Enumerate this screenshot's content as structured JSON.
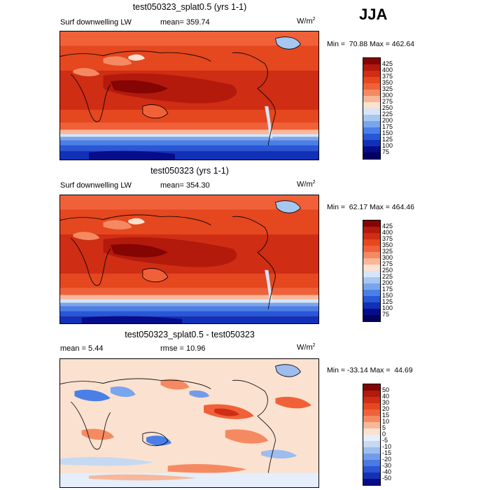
{
  "season": "JJA",
  "units": "W/m",
  "units_sup": "2",
  "panels": [
    {
      "title": "test050323_splat0.5 (yrs 1-1)",
      "field": "Surf downwelling LW",
      "mean": "mean= 359.74",
      "minmax": "Min =  70.88 Max = 462.64",
      "levels": [
        "425",
        "400",
        "375",
        "350",
        "325",
        "300",
        "275",
        "250",
        "225",
        "200",
        "175",
        "150",
        "125",
        "100",
        "75"
      ]
    },
    {
      "title": "test050323 (yrs 1-1)",
      "field": "Surf downwelling LW",
      "mean": "mean= 354.30",
      "minmax": "Min =  62.17 Max = 464.46",
      "levels": [
        "425",
        "400",
        "375",
        "350",
        "325",
        "300",
        "275",
        "250",
        "225",
        "200",
        "175",
        "150",
        "125",
        "100",
        "75"
      ]
    },
    {
      "title": "test050323_splat0.5 - test050323",
      "mean": "mean =   5.44",
      "rmse": "rmse =  10.96",
      "minmax": "Min = -33.14 Max =  44.69",
      "levels": [
        "50",
        "40",
        "30",
        "20",
        "15",
        "10",
        "5",
        "0",
        "-5",
        "-10",
        "-15",
        "-20",
        "-30",
        "-40",
        "-50"
      ]
    }
  ],
  "colors": {
    "abs_scale": [
      "#850404",
      "#b31a0c",
      "#cf2d14",
      "#e5471f",
      "#f0613a",
      "#f58a62",
      "#f8b798",
      "#fbe1cf",
      "#d6e5f7",
      "#a5c7f0",
      "#79a5ee",
      "#4a7fe8",
      "#2857d8",
      "#1131b8",
      "#070c8a",
      "#03035e"
    ],
    "diff_scale": [
      "#850404",
      "#b31a0c",
      "#cf2d14",
      "#e5471f",
      "#f0613a",
      "#f58a62",
      "#f8b798",
      "#fbe1cf",
      "#e5eefa",
      "#c5d9f3",
      "#9dbdee",
      "#729ce9",
      "#4a7ae2",
      "#2a55d4",
      "#1532b5",
      "#070b85"
    ]
  }
}
